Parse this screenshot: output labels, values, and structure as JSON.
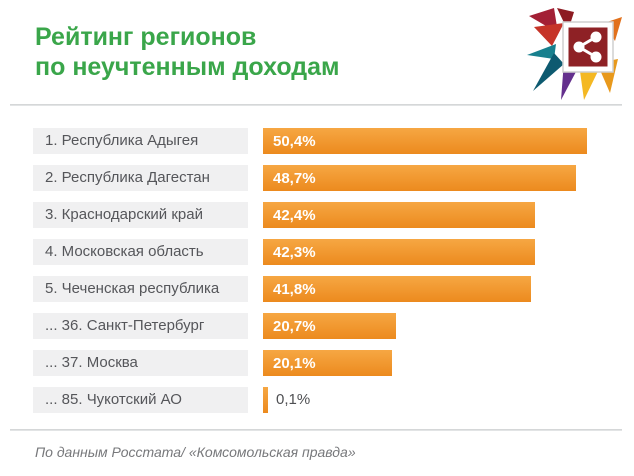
{
  "page": {
    "title_line1": "Рейтинг регионов",
    "title_line2": "по неучтенным доходам",
    "footer": "По данным Росстата/ «Комсомольская правда»",
    "accent_green": "#3aa64a",
    "bar_top_color": "#f6a743",
    "bar_bottom_color": "#ec8a1e",
    "label_box_color": "#f0f0f1",
    "label_text_color": "#55565a"
  },
  "chart_data": {
    "type": "bar",
    "orientation": "horizontal",
    "title": "Рейтинг регионов по неучтенным доходам",
    "categories": [
      "1. Республика Адыгея",
      "2. Республика Дагестан",
      "3. Краснодарский край",
      "4. Московская область",
      "5. Чеченская республика",
      "... 36. Санкт-Петербург",
      "... 37. Москва",
      "... 85. Чукотский АО"
    ],
    "values": [
      50.4,
      48.7,
      42.4,
      42.3,
      41.8,
      20.7,
      20.1,
      0.1
    ],
    "value_labels": [
      "50,4%",
      "48,7%",
      "42,4%",
      "42,3%",
      "41,8%",
      "20,7%",
      "20,1%",
      "0,1%"
    ],
    "xlim": [
      0,
      52.5
    ],
    "grid": false,
    "legend": "none",
    "source": "По данным Росстата/ «Комсомольская правда»"
  },
  "logo": {
    "name": "kp-starburst-logo",
    "icon": "share-icon"
  }
}
